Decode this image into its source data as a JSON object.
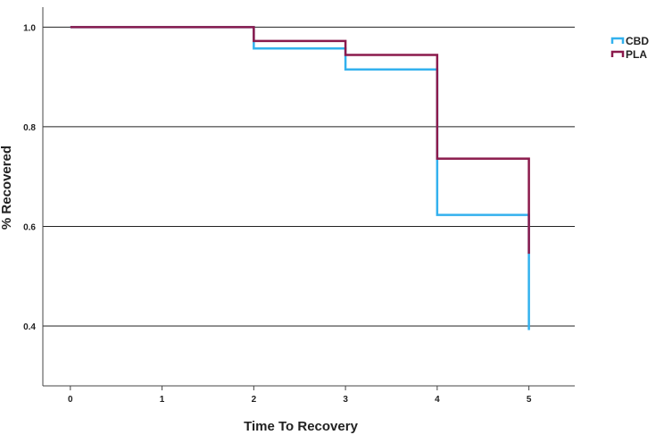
{
  "chart_data": {
    "type": "line",
    "step": true,
    "xlabel": "Time To Recovery",
    "ylabel": "% Recovered",
    "xlim": [
      -0.3,
      5.5
    ],
    "ylim": [
      0.28,
      1.04
    ],
    "xticks": [
      0,
      1,
      2,
      3,
      4,
      5
    ],
    "xtick_labels": [
      "0",
      "1",
      "2",
      "3",
      "4",
      "5"
    ],
    "yticks": [
      0.4,
      0.6,
      0.8,
      1.0
    ],
    "ytick_labels": [
      "0.4",
      "0.6",
      "0.8",
      "1.0"
    ],
    "grid": "horizontal",
    "legend_position": "top-right, outside plot",
    "series": [
      {
        "name": "CBD",
        "color": "#33b1ee",
        "x": [
          0,
          2,
          3,
          4,
          5,
          5
        ],
        "y": [
          1.0,
          0.957,
          0.915,
          0.623,
          0.545,
          0.392
        ]
      },
      {
        "name": "PLA",
        "color": "#8b1a4c",
        "x": [
          0,
          2,
          3,
          4,
          5
        ],
        "y": [
          1.0,
          0.972,
          0.944,
          0.736,
          0.545
        ]
      }
    ]
  }
}
